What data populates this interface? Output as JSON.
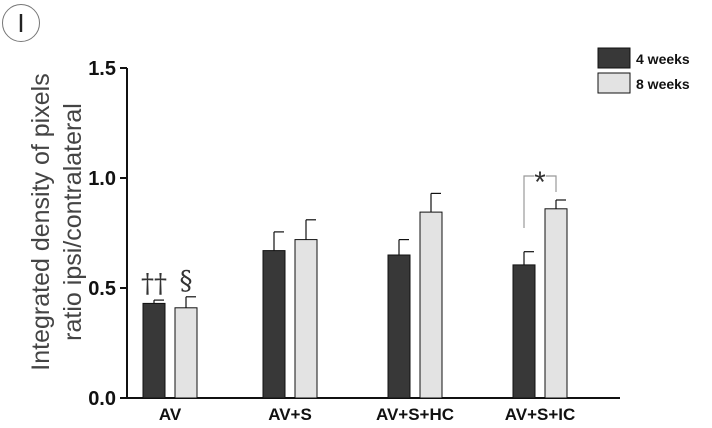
{
  "panel_label": "I",
  "colors": {
    "series_4": "#383838",
    "series_8": "#e3e3e3",
    "axis": "#111111"
  },
  "chart_data": {
    "type": "bar",
    "categories": [
      "AV",
      "AV+S",
      "AV+S+HC",
      "AV+S+IC"
    ],
    "series": [
      {
        "name": "4 weeks",
        "values": [
          0.43,
          0.67,
          0.65,
          0.605
        ],
        "errors": [
          0.015,
          0.085,
          0.07,
          0.06
        ]
      },
      {
        "name": "8 weeks",
        "values": [
          0.41,
          0.72,
          0.845,
          0.86
        ],
        "errors": [
          0.05,
          0.09,
          0.085,
          0.04
        ]
      }
    ],
    "title": "",
    "ylabel": "Integrated density of pixels ratio ipsi/contralateral",
    "ylabel_lines": [
      "Integrated density of pixels",
      "ratio ipsi/contralateral"
    ],
    "ylim": [
      0,
      1.5
    ],
    "yticks": [
      0.0,
      0.5,
      1.0,
      1.5
    ],
    "ytick_labels": [
      "0.0",
      "0.5",
      "1.0",
      "1.5"
    ],
    "legend_placement": "top-right",
    "grid": false,
    "annotations": [
      {
        "text": "††",
        "category": "AV",
        "series": "4 weeks"
      },
      {
        "text": "§",
        "category": "AV",
        "series": "8 weeks"
      },
      {
        "text": "*",
        "category": "AV+S+IC",
        "bracket": true
      }
    ]
  }
}
